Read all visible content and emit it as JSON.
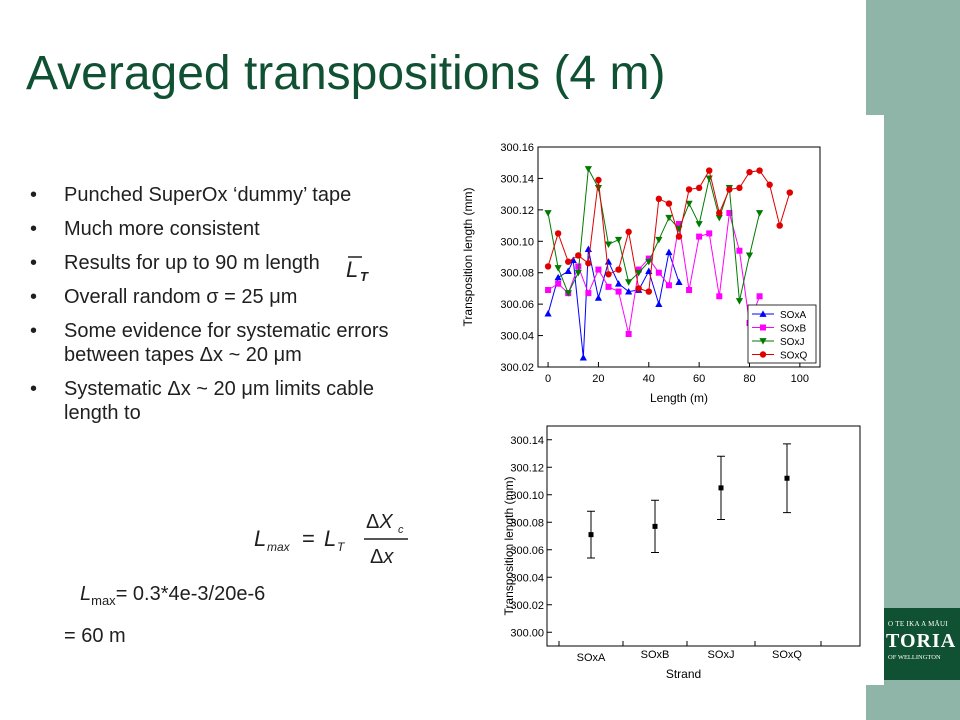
{
  "title": "Averaged transpositions (4 m)",
  "bullets": [
    {
      "marker": "•",
      "text": "Punched SuperOx ‘dummy’ tape"
    },
    {
      "marker": "•",
      "text": "Much more consistent"
    },
    {
      "marker": "•",
      "text": "Results for up to 90 m length"
    },
    {
      "marker": "•",
      "text": "Overall random σ = 25 μm"
    },
    {
      "marker": "•",
      "text": "Some evidence for systematic errors between tapes Δx ~ 20 μm"
    },
    {
      "marker": "•",
      "text": "Systematic Δx ~ 20 μm limits cable length to"
    }
  ],
  "lmax": {
    "symbol": "L",
    "subscript": "max",
    "expression": "= 0.3*4e-3/20e-6",
    "result": "= 60 m"
  },
  "logo": {
    "line1": "O TE IKA A MĀUI",
    "line2": "TORIA",
    "line3": "OF WELLINGTON"
  },
  "colors": {
    "title": "#0f5132",
    "sidebar": "#8fb5a8",
    "SOxA": "#0000ff",
    "SOxB": "#ff00ff",
    "SOxJ": "#007a00",
    "SOxQ": "#e00000"
  },
  "chart_data": [
    {
      "type": "line",
      "xlabel": "Length (m)",
      "ylabel": "Transposition length (mm)",
      "xlim": [
        -4,
        108
      ],
      "ylim": [
        300.02,
        300.16
      ],
      "xticks": [
        "0",
        "20",
        "40",
        "60",
        "80",
        "100"
      ],
      "yticks": [
        "300.02",
        "300.04",
        "300.06",
        "300.08",
        "300.10",
        "300.12",
        "300.14",
        "300.16"
      ],
      "legend_position": "bottom-right",
      "series": [
        {
          "name": "SOxA",
          "marker": "triangle-up",
          "x": [
            0,
            4,
            8,
            10,
            14,
            16,
            20,
            24,
            28,
            32,
            36,
            40,
            44,
            48,
            52
          ],
          "y": [
            300.054,
            300.077,
            300.081,
            300.088,
            300.026,
            300.095,
            300.064,
            300.087,
            300.073,
            300.068,
            300.069,
            300.081,
            300.06,
            300.093,
            300.074
          ]
        },
        {
          "name": "SOxB",
          "marker": "square",
          "x": [
            0,
            4,
            8,
            12,
            16,
            20,
            24,
            28,
            32,
            36,
            40,
            44,
            48,
            52,
            56,
            60,
            64,
            68,
            72,
            76,
            80,
            84
          ],
          "y": [
            300.069,
            300.073,
            300.067,
            300.084,
            300.067,
            300.082,
            300.071,
            300.068,
            300.041,
            300.082,
            300.089,
            300.08,
            300.072,
            300.111,
            300.069,
            300.103,
            300.105,
            300.065,
            300.118,
            300.094,
            300.048,
            300.065
          ]
        },
        {
          "name": "SOxJ",
          "marker": "triangle-down",
          "x": [
            0,
            4,
            8,
            12,
            16,
            20,
            24,
            28,
            32,
            36,
            40,
            44,
            48,
            52,
            56,
            60,
            64,
            68,
            72,
            76,
            80,
            84
          ],
          "y": [
            300.118,
            300.083,
            300.067,
            300.08,
            300.146,
            300.134,
            300.098,
            300.101,
            300.074,
            300.08,
            300.087,
            300.101,
            300.115,
            300.108,
            300.124,
            300.111,
            300.14,
            300.115,
            300.134,
            300.062,
            300.091,
            300.118
          ]
        },
        {
          "name": "SOxQ",
          "marker": "circle",
          "x": [
            0,
            4,
            8,
            12,
            16,
            20,
            24,
            28,
            32,
            36,
            40,
            44,
            48,
            52,
            56,
            60,
            64,
            68,
            72,
            76,
            80,
            84,
            88,
            92,
            96
          ],
          "y": [
            300.084,
            300.105,
            300.087,
            300.091,
            300.086,
            300.139,
            300.079,
            300.082,
            300.106,
            300.07,
            300.068,
            300.127,
            300.124,
            300.103,
            300.133,
            300.134,
            300.145,
            300.118,
            300.133,
            300.134,
            300.144,
            300.145,
            300.136,
            300.11,
            300.131
          ]
        }
      ]
    },
    {
      "type": "scatter",
      "xlabel": "Strand",
      "ylabel": "Transposition length (mm)",
      "ylim": [
        299.99,
        300.15
      ],
      "yticks": [
        "300.00",
        "300.02",
        "300.04",
        "300.06",
        "300.08",
        "300.10",
        "300.12",
        "300.14"
      ],
      "categories": [
        "SOxA",
        "SOxB",
        "SOxJ",
        "SOxQ"
      ],
      "values": [
        300.071,
        300.077,
        300.105,
        300.112
      ],
      "error": [
        0.017,
        0.019,
        0.023,
        0.025
      ]
    }
  ]
}
